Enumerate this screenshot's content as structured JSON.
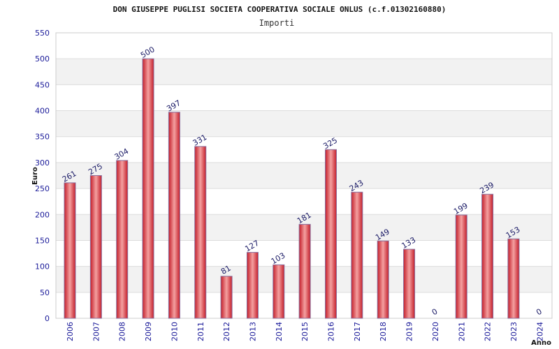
{
  "chart_data": {
    "type": "bar",
    "title": "DON GIUSEPPE PUGLISI SOCIETA COOPERATIVA SOCIALE ONLUS (c.f.01302160880)",
    "subtitle": "Importi",
    "xlabel": "Anno",
    "ylabel": "Euro",
    "categories": [
      "2006",
      "2007",
      "2008",
      "2009",
      "2010",
      "2011",
      "2012",
      "2013",
      "2014",
      "2015",
      "2016",
      "2017",
      "2018",
      "2019",
      "2020",
      "2021",
      "2022",
      "2023",
      "2024"
    ],
    "values": [
      261,
      275,
      304,
      500,
      397,
      331,
      81,
      127,
      103,
      181,
      325,
      243,
      149,
      133,
      0,
      199,
      239,
      153,
      0
    ],
    "data_labels": [
      "261",
      "275",
      "304",
      "500",
      "397",
      "331",
      "81",
      "127",
      "103",
      "181",
      "325",
      "243",
      "149",
      "133",
      "0",
      "199",
      "239",
      "153",
      "0"
    ],
    "ylim": [
      0,
      550
    ],
    "y_ticks": [
      "0",
      "50",
      "100",
      "150",
      "200",
      "250",
      "300",
      "350",
      "400",
      "450",
      "500",
      "550"
    ],
    "grid": true,
    "legend": "none",
    "colors": {
      "bar_center": "#f08080",
      "bar_edge": "#c41e2a",
      "bar_outline": "#8a6f9e",
      "band_light": "#f2f2f2",
      "band_white": "#ffffff",
      "tick_text": "#1a1a99",
      "label_text": "#1a1a66"
    }
  }
}
